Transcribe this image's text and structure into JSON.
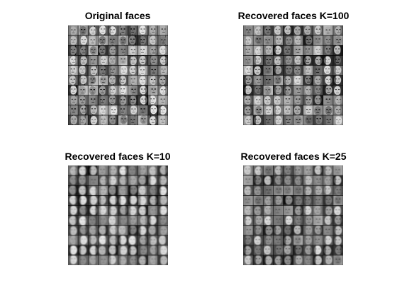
{
  "figure": {
    "panels": [
      {
        "title": "Original faces",
        "style": "orig"
      },
      {
        "title": "Recovered faces K=100",
        "style": "k100"
      },
      {
        "title": "Recovered faces K=10",
        "style": "k10"
      },
      {
        "title": "Recovered faces K=25",
        "style": "k25"
      }
    ],
    "grid": {
      "rows": 10,
      "cols": 10
    },
    "colors": {
      "background": "#ffffff",
      "title": "#000000",
      "cell_border": "#000000"
    }
  }
}
